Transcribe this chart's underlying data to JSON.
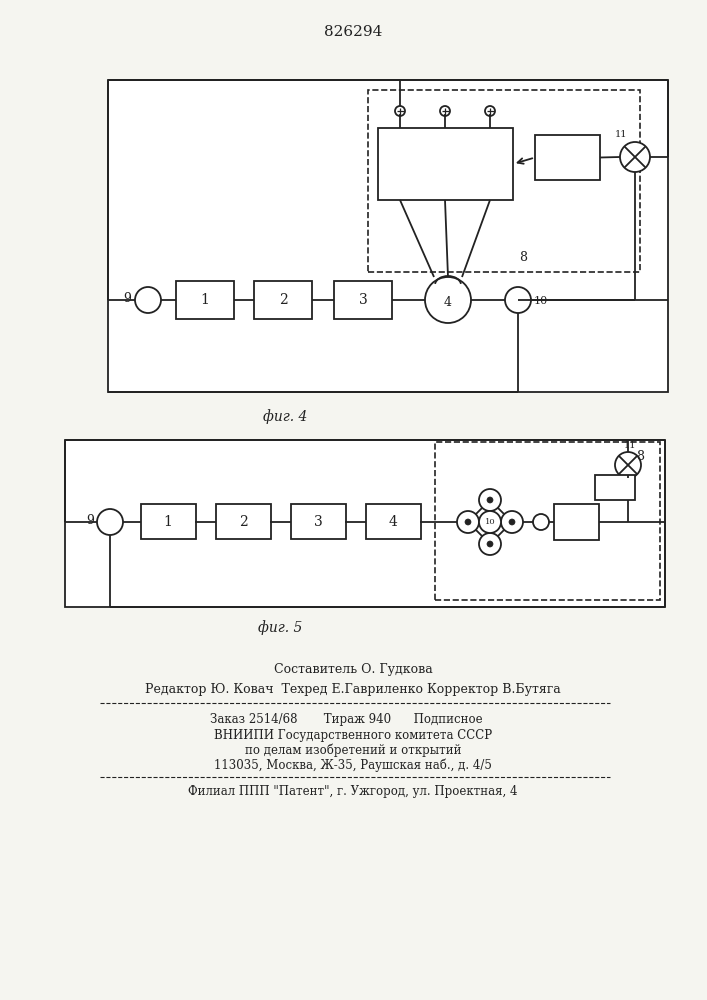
{
  "title": "826294",
  "fig4_label": "фиг. 4",
  "fig5_label": "фиг. 5",
  "footer_line1": "Составитель О. Гудкова",
  "footer_line2": "Редактор Ю. Ковач  Техред Е.Гавриленко Корректор В.Бутяга",
  "footer_line3": "Заказ 2514/68       Тираж 940      Подписное",
  "footer_line4": "ВНИИПИ Государственного комитета СССР",
  "footer_line5": "по делам изобретений и открытий",
  "footer_line6": "113035, Москва, Ж-35, Раушская наб., д. 4/5",
  "footer_line7": "Филиал ППП \"Патент\", г. Ужгород, ул. Проектная, 4",
  "bg_color": "#f5f5f0",
  "line_color": "#222222"
}
